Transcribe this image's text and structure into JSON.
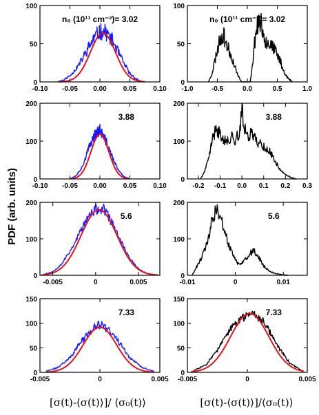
{
  "figure": {
    "ylabel": "PDF (arb. units)",
    "xlabel_left": "[σ(t)-⟨σ(t)⟩]/ ⟨σ₀(t)⟩",
    "xlabel_right": "[σ(t)-⟨σ(t)⟩]/⟨σ₀(t)⟩",
    "colors": {
      "histogram_blue": "#1a1aff",
      "gaussian_red": "#e8101a",
      "histogram_black": "#000000"
    }
  },
  "chart_data": [
    {
      "type": "line",
      "panel": "row1-left",
      "annotation": "n₀ (10¹¹ cm⁻²)= 3.02",
      "xlim": [
        -0.1,
        0.1
      ],
      "ylim": [
        0,
        100
      ],
      "xticks": [
        "-0.10",
        "-0.05",
        "0.00",
        "0.05",
        "0.10"
      ],
      "xtick_values": [
        -0.1,
        -0.05,
        0.0,
        0.05,
        0.1
      ],
      "yticks": [
        "0",
        "50",
        "100"
      ],
      "ytick_values": [
        0,
        50,
        100
      ],
      "series": [
        {
          "kind": "histogram",
          "color": "#1a1aff",
          "noise": 0.16,
          "seed": 11,
          "x": [
            -0.07,
            -0.06,
            -0.05,
            -0.04,
            -0.03,
            -0.02,
            -0.01,
            0.0,
            0.01,
            0.02,
            0.03,
            0.04,
            0.05,
            0.06,
            0.07
          ],
          "y": [
            0,
            3,
            8,
            17,
            29,
            44,
            57,
            66,
            65,
            55,
            40,
            24,
            11,
            4,
            0
          ]
        },
        {
          "kind": "gaussian",
          "color": "#e8101a",
          "amplitude": 64,
          "mean": 0.005,
          "sigma": 0.021,
          "x_range": [
            -0.068,
            0.075
          ]
        }
      ]
    },
    {
      "type": "line",
      "panel": "row1-right",
      "annotation": "n₀ (10¹¹ cm⁻²)= 3.02",
      "xlim": [
        -1.0,
        1.0
      ],
      "ylim": [
        0,
        100
      ],
      "xticks": [
        "-1.0",
        "-0.5",
        "0.0",
        "0.5",
        "1.0"
      ],
      "xtick_values": [
        -1.0,
        -0.5,
        0.0,
        0.5,
        1.0
      ],
      "yticks": [
        "0",
        "50",
        "100"
      ],
      "ytick_values": [
        0,
        50,
        100
      ],
      "series": [
        {
          "kind": "histogram",
          "color": "#000000",
          "noise": 0.2,
          "seed": 23,
          "x": [
            -0.65,
            -0.6,
            -0.55,
            -0.5,
            -0.45,
            -0.4,
            -0.35,
            -0.3,
            -0.25,
            -0.2,
            -0.15,
            -0.1,
            -0.05,
            0.0,
            0.05,
            0.1,
            0.15,
            0.2,
            0.25,
            0.3,
            0.35,
            0.4,
            0.45,
            0.5,
            0.55,
            0.6,
            0.65,
            0.7,
            0.75
          ],
          "y": [
            0,
            8,
            25,
            42,
            58,
            62,
            50,
            40,
            30,
            18,
            7,
            0,
            0,
            0,
            0,
            35,
            72,
            80,
            70,
            55,
            52,
            48,
            42,
            35,
            28,
            15,
            8,
            3,
            0
          ]
        }
      ]
    },
    {
      "type": "line",
      "panel": "row2-left",
      "annotation": "3.88",
      "xlim": [
        -0.1,
        0.1
      ],
      "ylim": [
        0,
        200
      ],
      "xticks": [
        "-0.10",
        "-0.05",
        "0.00",
        "0.05",
        "0.10"
      ],
      "xtick_values": [
        -0.1,
        -0.05,
        0.0,
        0.05,
        0.1
      ],
      "yticks": [
        "0",
        "100",
        "200"
      ],
      "ytick_values": [
        0,
        100,
        200
      ],
      "series": [
        {
          "kind": "histogram",
          "color": "#1a1aff",
          "noise": 0.12,
          "seed": 37,
          "x": [
            -0.05,
            -0.04,
            -0.03,
            -0.02,
            -0.01,
            0.0,
            0.01,
            0.02,
            0.03,
            0.04,
            0.05
          ],
          "y": [
            0,
            8,
            30,
            75,
            115,
            130,
            100,
            60,
            25,
            6,
            0
          ]
        },
        {
          "kind": "gaussian",
          "color": "#e8101a",
          "amplitude": 118,
          "mean": 0.0,
          "sigma": 0.015,
          "x_range": [
            -0.045,
            0.045
          ]
        }
      ]
    },
    {
      "type": "line",
      "panel": "row2-right",
      "annotation": "3.88",
      "xlim": [
        -0.25,
        0.3
      ],
      "ylim": [
        0,
        200
      ],
      "xticks": [
        "-0.2",
        "-0.1",
        "0.0",
        "0.1",
        "0.2",
        "0.3"
      ],
      "xtick_values": [
        -0.2,
        -0.1,
        0.0,
        0.1,
        0.2,
        0.3
      ],
      "yticks": [
        "0",
        "100",
        "200"
      ],
      "ytick_values": [
        0,
        100,
        200
      ],
      "series": [
        {
          "kind": "histogram",
          "color": "#000000",
          "noise": 0.15,
          "seed": 41,
          "x": [
            -0.19,
            -0.17,
            -0.15,
            -0.13,
            -0.11,
            -0.09,
            -0.07,
            -0.05,
            -0.03,
            -0.01,
            0.0,
            0.01,
            0.03,
            0.05,
            0.07,
            0.09,
            0.11,
            0.13,
            0.15,
            0.17,
            0.19,
            0.21,
            0.23,
            0.25
          ],
          "y": [
            0,
            20,
            60,
            120,
            125,
            115,
            95,
            110,
            105,
            120,
            185,
            140,
            115,
            120,
            100,
            90,
            80,
            70,
            50,
            30,
            15,
            8,
            3,
            0
          ]
        }
      ]
    },
    {
      "type": "line",
      "panel": "row3-left",
      "annotation": "5.6",
      "xlim": [
        -0.0065,
        0.0075
      ],
      "ylim": [
        0,
        200
      ],
      "xticks": [
        "-0.005",
        "0",
        "0.005"
      ],
      "xtick_values": [
        -0.005,
        0,
        0.005
      ],
      "yticks": [
        "0",
        "100",
        "200"
      ],
      "ytick_values": [
        0,
        100,
        200
      ],
      "series": [
        {
          "kind": "histogram",
          "color": "#1a1aff",
          "noise": 0.08,
          "seed": 53,
          "x": [
            -0.006,
            -0.005,
            -0.004,
            -0.003,
            -0.002,
            -0.001,
            0.0,
            0.001,
            0.002,
            0.003,
            0.004,
            0.005,
            0.006,
            0.007
          ],
          "y": [
            3,
            10,
            30,
            65,
            110,
            155,
            180,
            180,
            140,
            90,
            45,
            18,
            5,
            1
          ]
        },
        {
          "kind": "gaussian",
          "color": "#e8101a",
          "amplitude": 180,
          "mean": 0.0004,
          "sigma": 0.0021,
          "x_range": [
            -0.0063,
            0.0073
          ]
        }
      ]
    },
    {
      "type": "line",
      "panel": "row3-right",
      "annotation": "5.6",
      "xlim": [
        -0.01,
        0.015
      ],
      "ylim": [
        0,
        200
      ],
      "xticks": [
        "-0.01",
        "0",
        "0.01"
      ],
      "xtick_values": [
        -0.01,
        0,
        0.01
      ],
      "yticks": [
        "0",
        "100",
        "200"
      ],
      "ytick_values": [
        0,
        100,
        200
      ],
      "series": [
        {
          "kind": "histogram",
          "color": "#000000",
          "noise": 0.15,
          "seed": 61,
          "x": [
            -0.009,
            -0.008,
            -0.007,
            -0.006,
            -0.005,
            -0.004,
            -0.003,
            -0.002,
            -0.001,
            0.0,
            0.001,
            0.002,
            0.003,
            0.004,
            0.005,
            0.006,
            0.007,
            0.008,
            0.009,
            0.01,
            0.011
          ],
          "y": [
            0,
            25,
            50,
            80,
            140,
            185,
            150,
            110,
            70,
            40,
            30,
            40,
            60,
            65,
            45,
            25,
            12,
            6,
            3,
            1,
            0
          ]
        }
      ]
    },
    {
      "type": "line",
      "panel": "row4-left",
      "annotation": "7.33",
      "xlim": [
        -0.005,
        0.005
      ],
      "ylim": [
        0,
        150
      ],
      "xticks": [
        "-0.005",
        "0",
        "0.005"
      ],
      "xtick_values": [
        -0.005,
        0,
        0.005
      ],
      "yticks": [
        "0",
        "50",
        "100",
        "150"
      ],
      "ytick_values": [
        0,
        50,
        100,
        150
      ],
      "series": [
        {
          "kind": "histogram",
          "color": "#1a1aff",
          "noise": 0.1,
          "seed": 71,
          "x": [
            -0.0045,
            -0.0035,
            -0.0025,
            -0.0015,
            -0.0005,
            0.0,
            0.0005,
            0.0015,
            0.0025,
            0.0035,
            0.0045
          ],
          "y": [
            2,
            10,
            30,
            65,
            90,
            97,
            92,
            65,
            30,
            10,
            2
          ]
        },
        {
          "kind": "gaussian",
          "color": "#e8101a",
          "amplitude": 92,
          "mean": 0.0,
          "sigma": 0.0014,
          "x_range": [
            -0.0045,
            0.0045
          ]
        }
      ]
    },
    {
      "type": "line",
      "panel": "row4-right",
      "annotation": "7.33",
      "xlim": [
        -0.005,
        0.005
      ],
      "ylim": [
        0,
        150
      ],
      "xticks": [
        "-0.005",
        "0",
        "0.005"
      ],
      "xtick_values": [
        -0.005,
        0,
        0.005
      ],
      "yticks": [
        "0",
        "50",
        "100",
        "150"
      ],
      "ytick_values": [
        0,
        50,
        100,
        150
      ],
      "series": [
        {
          "kind": "histogram",
          "color": "#000000",
          "noise": 0.08,
          "seed": 83,
          "x": [
            -0.0045,
            -0.0035,
            -0.0025,
            -0.0015,
            -0.0005,
            0.0,
            0.0005,
            0.0015,
            0.0025,
            0.0035,
            0.0045
          ],
          "y": [
            3,
            15,
            45,
            85,
            110,
            118,
            122,
            100,
            55,
            20,
            4
          ]
        },
        {
          "kind": "gaussian",
          "color": "#e8101a",
          "amplitude": 120,
          "mean": 0.0002,
          "sigma": 0.0016,
          "x_range": [
            -0.0047,
            0.0047
          ]
        }
      ]
    }
  ]
}
